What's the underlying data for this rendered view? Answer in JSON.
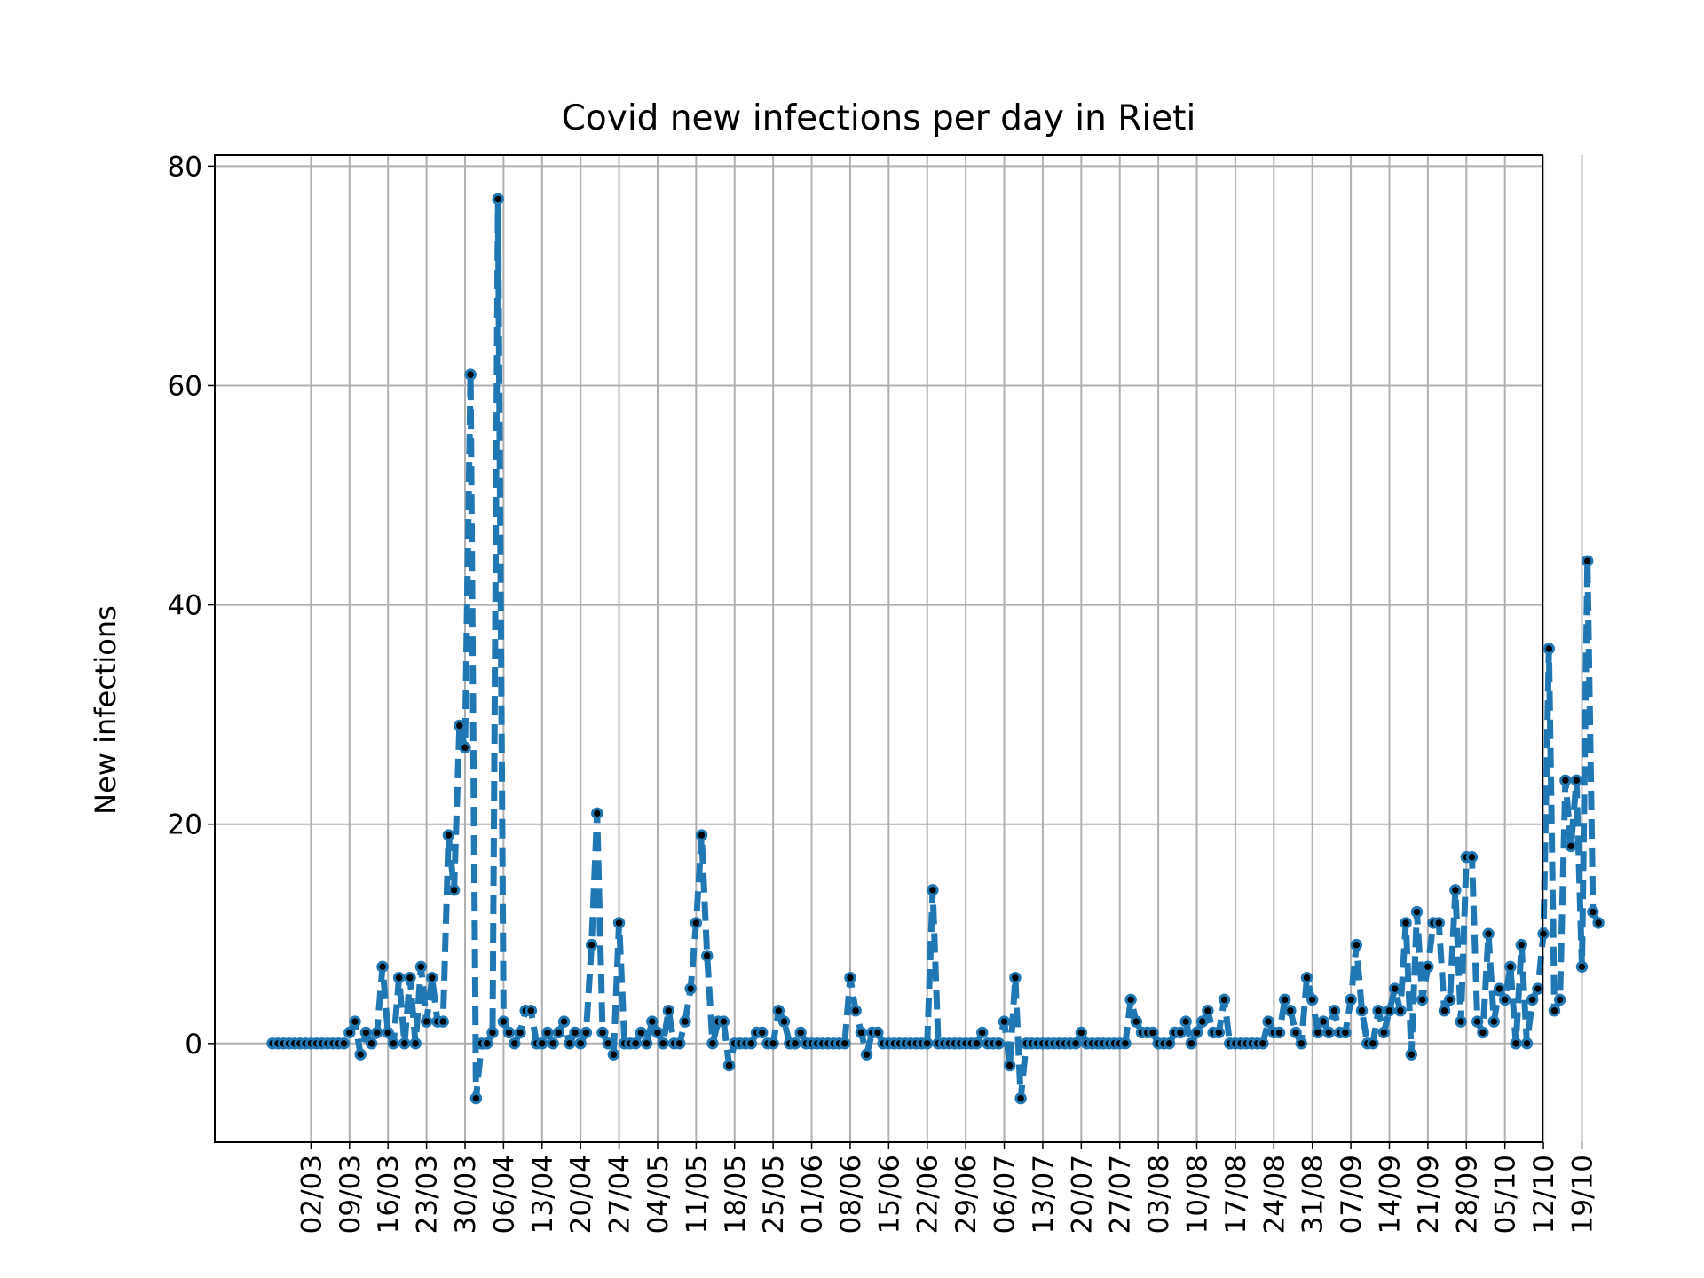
{
  "chart_data": {
    "type": "line",
    "title": "Covid new infections per day in Rieti",
    "xlabel": "",
    "ylabel": "New infections",
    "ylim": [
      -9,
      81
    ],
    "yticks": [
      0,
      20,
      40,
      60,
      80
    ],
    "grid": true,
    "legend": "none",
    "line_color": "#1f77b4",
    "marker_color": "#000000",
    "xticks": [
      "02/03",
      "09/03",
      "16/03",
      "23/03",
      "30/03",
      "06/04",
      "13/04",
      "20/04",
      "27/04",
      "04/05",
      "11/05",
      "18/05",
      "25/05",
      "01/06",
      "08/06",
      "15/06",
      "22/06",
      "29/06",
      "06/07",
      "13/07",
      "20/07",
      "27/07",
      "03/08",
      "10/08",
      "17/08",
      "24/08",
      "31/08",
      "07/09",
      "14/09",
      "21/09",
      "28/09",
      "05/10",
      "12/10",
      "19/10"
    ],
    "start_date": "2020-02-24",
    "series": [
      {
        "name": "",
        "values": [
          0,
          0,
          0,
          0,
          0,
          0,
          0,
          0,
          0,
          0,
          0,
          0,
          0,
          0,
          1,
          2,
          -1,
          1,
          0,
          1,
          7,
          1,
          0,
          6,
          0,
          6,
          0,
          7,
          2,
          6,
          2,
          2,
          19,
          14,
          29,
          27,
          61,
          -5,
          0,
          0,
          1,
          77,
          2,
          1,
          0,
          1,
          3,
          3,
          0,
          0,
          1,
          0,
          1,
          2,
          0,
          1,
          0,
          1,
          9,
          21,
          1,
          0,
          -1,
          11,
          0,
          0,
          0,
          1,
          0,
          2,
          1,
          0,
          3,
          0,
          0,
          2,
          5,
          11,
          19,
          8,
          0,
          2,
          2,
          -2,
          0,
          0,
          0,
          0,
          1,
          1,
          0,
          0,
          3,
          2,
          0,
          0,
          1,
          0,
          0,
          0,
          0,
          0,
          0,
          0,
          0,
          6,
          3,
          1,
          -1,
          1,
          1,
          0,
          0,
          0,
          0,
          0,
          0,
          0,
          0,
          0,
          14,
          0,
          0,
          0,
          0,
          0,
          0,
          0,
          0,
          1,
          0,
          0,
          0,
          2,
          -2,
          6,
          -5,
          0,
          0,
          0,
          0,
          0,
          0,
          0,
          0,
          0,
          0,
          1,
          0,
          0,
          0,
          0,
          0,
          0,
          0,
          0,
          4,
          2,
          1,
          1,
          1,
          0,
          0,
          0,
          1,
          1,
          2,
          0,
          1,
          2,
          3,
          1,
          1,
          4,
          0,
          0,
          0,
          0,
          0,
          0,
          0,
          2,
          1,
          1,
          4,
          3,
          1,
          0,
          6,
          4,
          1,
          2,
          1,
          3,
          1,
          1,
          4,
          9,
          3,
          0,
          0,
          3,
          1,
          3,
          5,
          3,
          11,
          -1,
          12,
          4,
          7,
          11,
          11,
          3,
          4,
          14,
          2,
          17,
          17,
          2,
          1,
          10,
          2,
          5,
          4,
          7,
          0,
          9,
          0,
          4,
          5,
          10,
          36,
          3,
          4,
          24,
          18,
          24,
          7,
          44,
          12,
          11
        ]
      }
    ]
  }
}
